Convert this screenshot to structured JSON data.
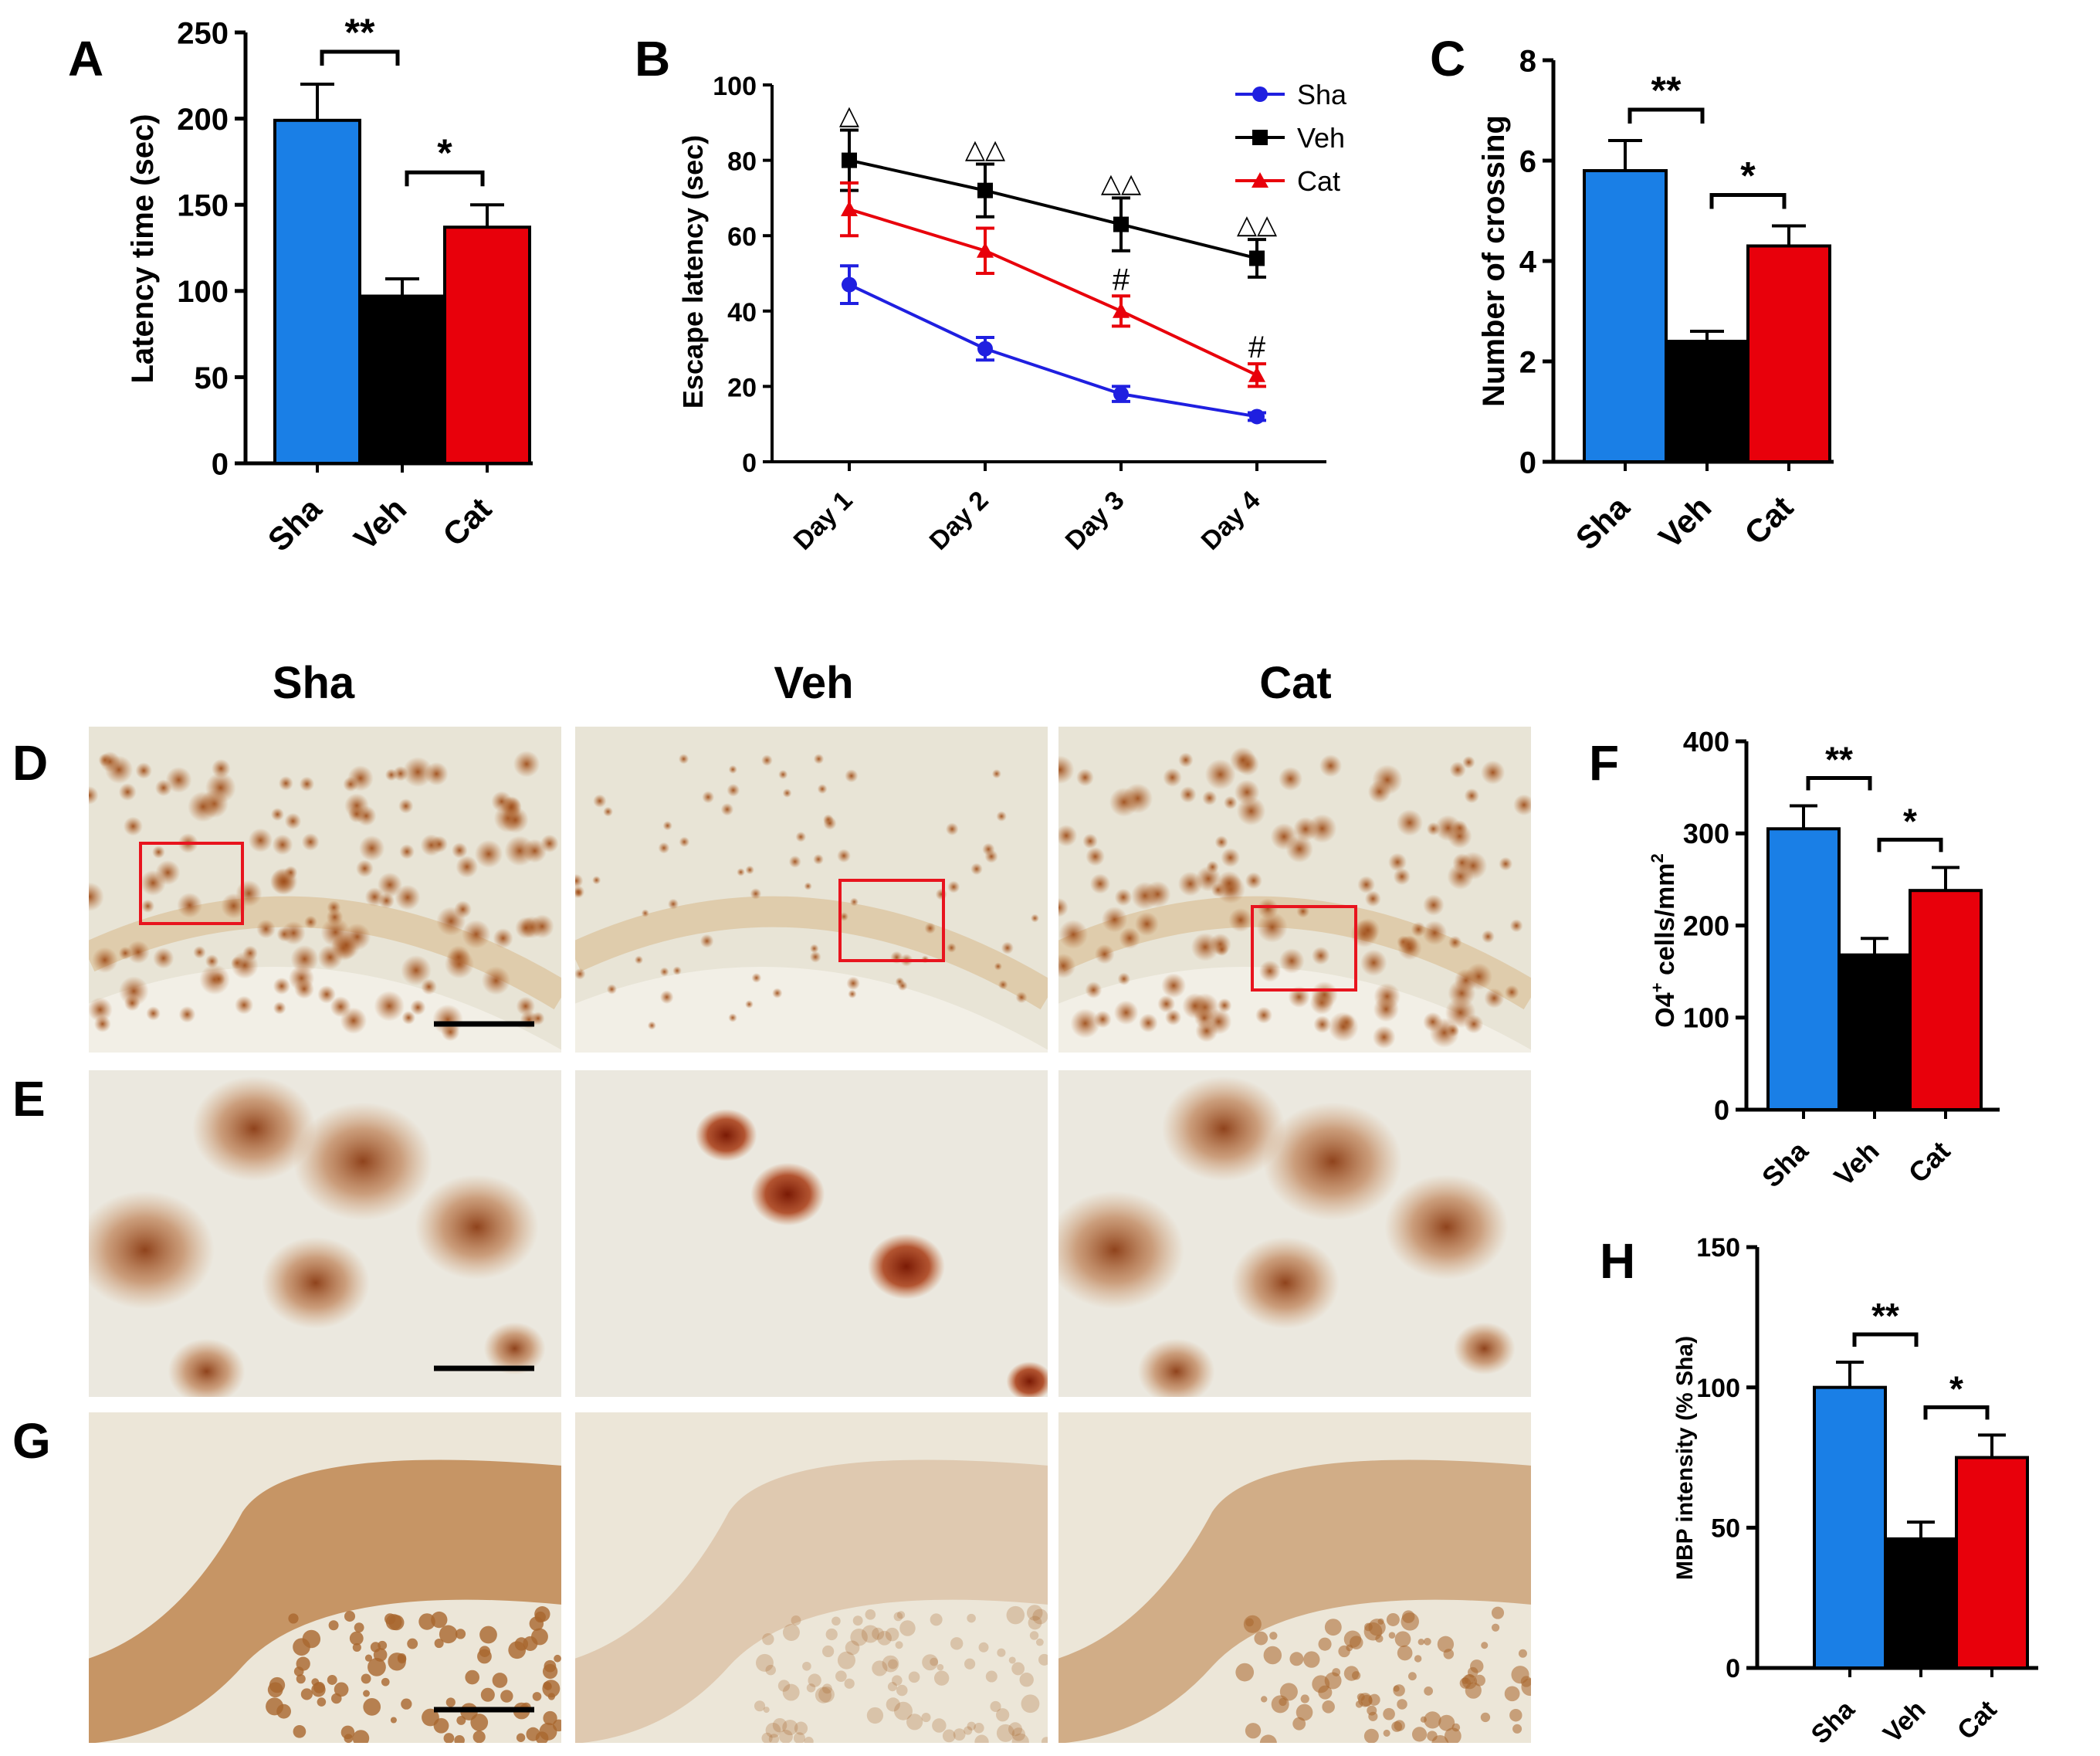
{
  "panels": {
    "A": "A",
    "B": "B",
    "C": "C",
    "D": "D",
    "E": "E",
    "F": "F",
    "G": "G",
    "H": "H"
  },
  "image_columns": [
    "Sha",
    "Veh",
    "Cat"
  ],
  "colors": {
    "sha": "#1a7fe6",
    "veh": "#000000",
    "cat": "#e8000b",
    "line_sha": "#1f1fe0",
    "roi": "#e8141e"
  },
  "chart_data": [
    {
      "id": "A",
      "type": "bar",
      "categories": [
        "Sha",
        "Veh",
        "Cat"
      ],
      "values": [
        199,
        97,
        137
      ],
      "errors": [
        21,
        10,
        13
      ],
      "ylim": [
        0,
        250
      ],
      "yticks": [
        "0",
        "50",
        "100",
        "150",
        "200",
        "250"
      ],
      "ylabel": "Latency time (sec)",
      "significance": [
        {
          "pair": [
            0,
            1
          ],
          "label": "**"
        },
        {
          "pair": [
            1,
            2
          ],
          "label": "*"
        }
      ]
    },
    {
      "id": "B",
      "type": "line",
      "categories": [
        "Day 1",
        "Day 2",
        "Day 3",
        "Day 4"
      ],
      "series": [
        {
          "name": "Sha",
          "values": [
            47,
            30,
            18,
            12
          ],
          "errors": [
            5,
            3,
            2,
            1
          ],
          "marker": "circle"
        },
        {
          "name": "Veh",
          "values": [
            80,
            72,
            63,
            54
          ],
          "errors": [
            8,
            7,
            7,
            5
          ],
          "marker": "square"
        },
        {
          "name": "Cat",
          "values": [
            67,
            56,
            40,
            23
          ],
          "errors": [
            7,
            6,
            4,
            3
          ],
          "marker": "triangle"
        }
      ],
      "ylim": [
        0,
        100
      ],
      "yticks": [
        "0",
        "20",
        "40",
        "60",
        "80",
        "100"
      ],
      "ylabel": "Escape latency (sec)",
      "annotations": [
        {
          "day": 0,
          "text": "△",
          "above": 88
        },
        {
          "day": 1,
          "text": "△△",
          "above": 79
        },
        {
          "day": 2,
          "text": "△△",
          "above": 70
        },
        {
          "day": 3,
          "text": "△△",
          "above": 59
        },
        {
          "day": 2,
          "text": "#",
          "above": 44
        },
        {
          "day": 3,
          "text": "#",
          "above": 26
        }
      ]
    },
    {
      "id": "C",
      "type": "bar",
      "categories": [
        "Sha",
        "Veh",
        "Cat"
      ],
      "values": [
        5.8,
        2.4,
        4.3
      ],
      "errors": [
        0.6,
        0.2,
        0.4
      ],
      "ylim": [
        0,
        8
      ],
      "yticks": [
        "0",
        "2",
        "4",
        "6",
        "8"
      ],
      "ylabel": "Number of crossing",
      "significance": [
        {
          "pair": [
            0,
            1
          ],
          "label": "**"
        },
        {
          "pair": [
            1,
            2
          ],
          "label": "*"
        }
      ]
    },
    {
      "id": "F",
      "type": "bar",
      "categories": [
        "Sha",
        "Veh",
        "Cat"
      ],
      "values": [
        305,
        168,
        238
      ],
      "errors": [
        25,
        18,
        25
      ],
      "ylim": [
        0,
        400
      ],
      "yticks": [
        "0",
        "100",
        "200",
        "300",
        "400"
      ],
      "ylabel_main": "O4",
      "ylabel_sup": "+",
      "ylabel_rest": " cells/mm",
      "ylabel_sup2": "2",
      "significance": [
        {
          "pair": [
            0,
            1
          ],
          "label": "**"
        },
        {
          "pair": [
            1,
            2
          ],
          "label": "*"
        }
      ]
    },
    {
      "id": "H",
      "type": "bar",
      "categories": [
        "Sha",
        "Veh",
        "Cat"
      ],
      "values": [
        100,
        46,
        75
      ],
      "errors": [
        9,
        6,
        8
      ],
      "ylim": [
        0,
        150
      ],
      "yticks": [
        "0",
        "50",
        "100",
        "150"
      ],
      "ylabel": "MBP intensity (% Sha)",
      "significance": [
        {
          "pair": [
            0,
            1
          ],
          "label": "**"
        },
        {
          "pair": [
            1,
            2
          ],
          "label": "*"
        }
      ]
    }
  ]
}
